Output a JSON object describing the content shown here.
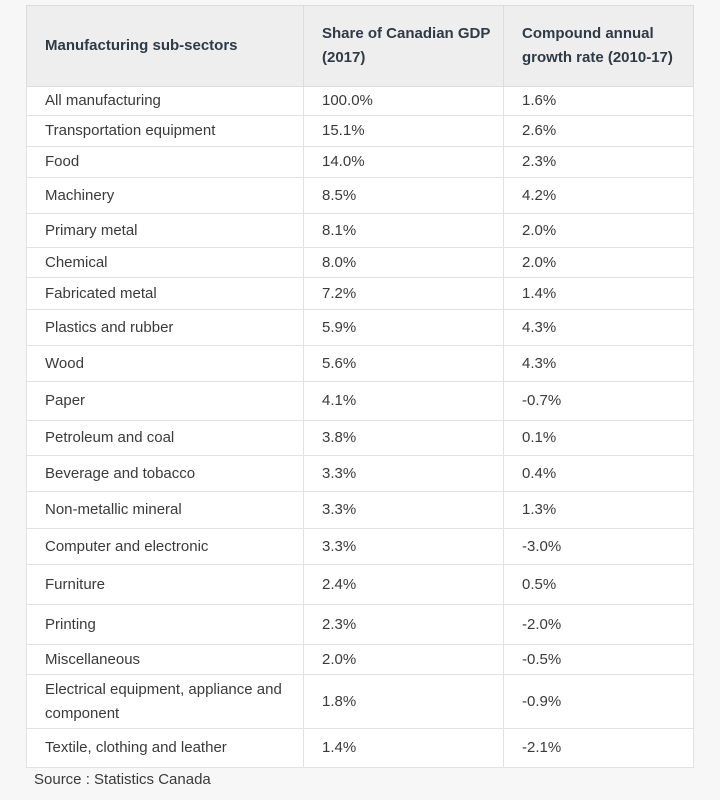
{
  "table": {
    "headers": [
      "Manufacturing sub-sectors",
      "Share of Canadian GDP (2017)",
      "Compound annual growth rate (2010-17)"
    ],
    "rows": [
      [
        "All manufacturing",
        "100.0%",
        "1.6%"
      ],
      [
        "Transportation equipment",
        "15.1%",
        "2.6%"
      ],
      [
        "Food",
        "14.0%",
        "2.3%"
      ],
      [
        "Machinery",
        "8.5%",
        "4.2%"
      ],
      [
        "Primary metal",
        "8.1%",
        "2.0%"
      ],
      [
        "Chemical",
        "8.0%",
        "2.0%"
      ],
      [
        "Fabricated metal",
        "7.2%",
        "1.4%"
      ],
      [
        "Plastics and rubber",
        "5.9%",
        "4.3%"
      ],
      [
        "Wood",
        "5.6%",
        "4.3%"
      ],
      [
        "Paper",
        "4.1%",
        "-0.7%"
      ],
      [
        "Petroleum and coal",
        "3.8%",
        "0.1%"
      ],
      [
        "Beverage and tobacco",
        "3.3%",
        "0.4%"
      ],
      [
        "Non-metallic mineral",
        "3.3%",
        "1.3%"
      ],
      [
        "Computer and electronic",
        "3.3%",
        "-3.0%"
      ],
      [
        "Furniture",
        "2.4%",
        "0.5%"
      ],
      [
        "Printing",
        "2.3%",
        "-2.0%"
      ],
      [
        "Miscellaneous",
        "2.0%",
        "-0.5%"
      ],
      [
        "Electrical equipment, appliance and component",
        "1.8%",
        "-0.9%"
      ],
      [
        "Textile, clothing and leather",
        "1.4%",
        "-2.1%"
      ]
    ]
  },
  "source": "Source : Statistics Canada"
}
